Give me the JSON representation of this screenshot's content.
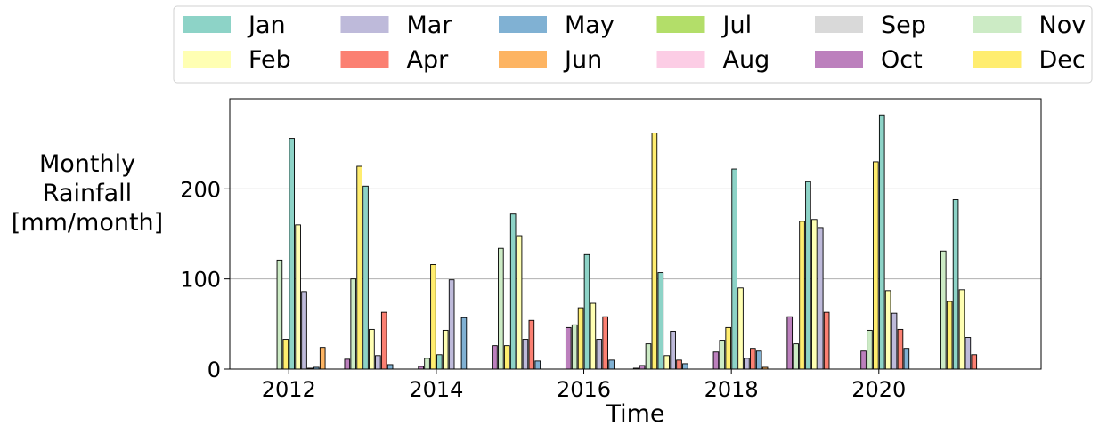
{
  "chart_data": {
    "type": "bar",
    "xlabel": "Time",
    "ylabel_lines": [
      "Monthly",
      "Rainfall",
      "[mm/month]"
    ],
    "ylim": [
      0,
      300
    ],
    "yticks": [
      0,
      100,
      200
    ],
    "xlim": [
      2011.2,
      2022.2
    ],
    "xticks": [
      2012,
      2014,
      2016,
      2018,
      2020
    ],
    "grid": "horizontal",
    "legend_position": "top",
    "months": [
      {
        "name": "Jan",
        "color": "#8dd3c7"
      },
      {
        "name": "Feb",
        "color": "#ffffb3"
      },
      {
        "name": "Mar",
        "color": "#bebada"
      },
      {
        "name": "Apr",
        "color": "#fb8072"
      },
      {
        "name": "May",
        "color": "#80b1d3"
      },
      {
        "name": "Jun",
        "color": "#fdb462"
      },
      {
        "name": "Jul",
        "color": "#b3de69"
      },
      {
        "name": "Aug",
        "color": "#fccde5"
      },
      {
        "name": "Sep",
        "color": "#d9d9d9"
      },
      {
        "name": "Oct",
        "color": "#bc80bd"
      },
      {
        "name": "Nov",
        "color": "#ccebc5"
      },
      {
        "name": "Dec",
        "color": "#ffed6f"
      }
    ],
    "series": [
      {
        "year": 2011,
        "values": [
          0,
          0,
          0,
          0,
          0,
          0,
          0,
          0,
          0,
          0,
          121,
          33
        ]
      },
      {
        "year": 2012,
        "values": [
          256,
          160,
          86,
          1,
          2,
          24,
          0,
          0,
          0,
          11,
          100,
          225
        ]
      },
      {
        "year": 2013,
        "values": [
          203,
          44,
          15,
          63,
          5,
          0,
          0,
          0,
          0,
          3,
          12,
          116
        ]
      },
      {
        "year": 2014,
        "values": [
          16,
          43,
          99,
          0,
          57,
          0,
          0,
          0,
          0,
          26,
          134,
          26
        ]
      },
      {
        "year": 2015,
        "values": [
          172,
          148,
          33,
          54,
          9,
          0,
          0,
          0,
          0,
          46,
          49,
          68
        ]
      },
      {
        "year": 2016,
        "values": [
          127,
          73,
          33,
          58,
          10,
          0,
          0,
          0,
          1,
          4,
          28,
          262
        ]
      },
      {
        "year": 2017,
        "values": [
          107,
          15,
          42,
          10,
          6,
          0,
          0,
          0,
          0,
          19,
          32,
          46
        ]
      },
      {
        "year": 2018,
        "values": [
          222,
          90,
          12,
          23,
          20,
          2,
          0,
          0,
          0,
          58,
          28,
          164
        ]
      },
      {
        "year": 2019,
        "values": [
          208,
          166,
          157,
          63,
          0,
          0,
          0,
          0,
          0,
          20,
          43,
          230
        ]
      },
      {
        "year": 2020,
        "values": [
          282,
          87,
          62,
          44,
          23,
          0,
          0,
          0,
          0,
          0,
          131,
          75
        ]
      },
      {
        "year": 2021,
        "values": [
          188,
          88,
          35,
          16,
          0,
          0,
          0,
          0,
          0,
          0,
          0,
          0
        ]
      }
    ]
  }
}
